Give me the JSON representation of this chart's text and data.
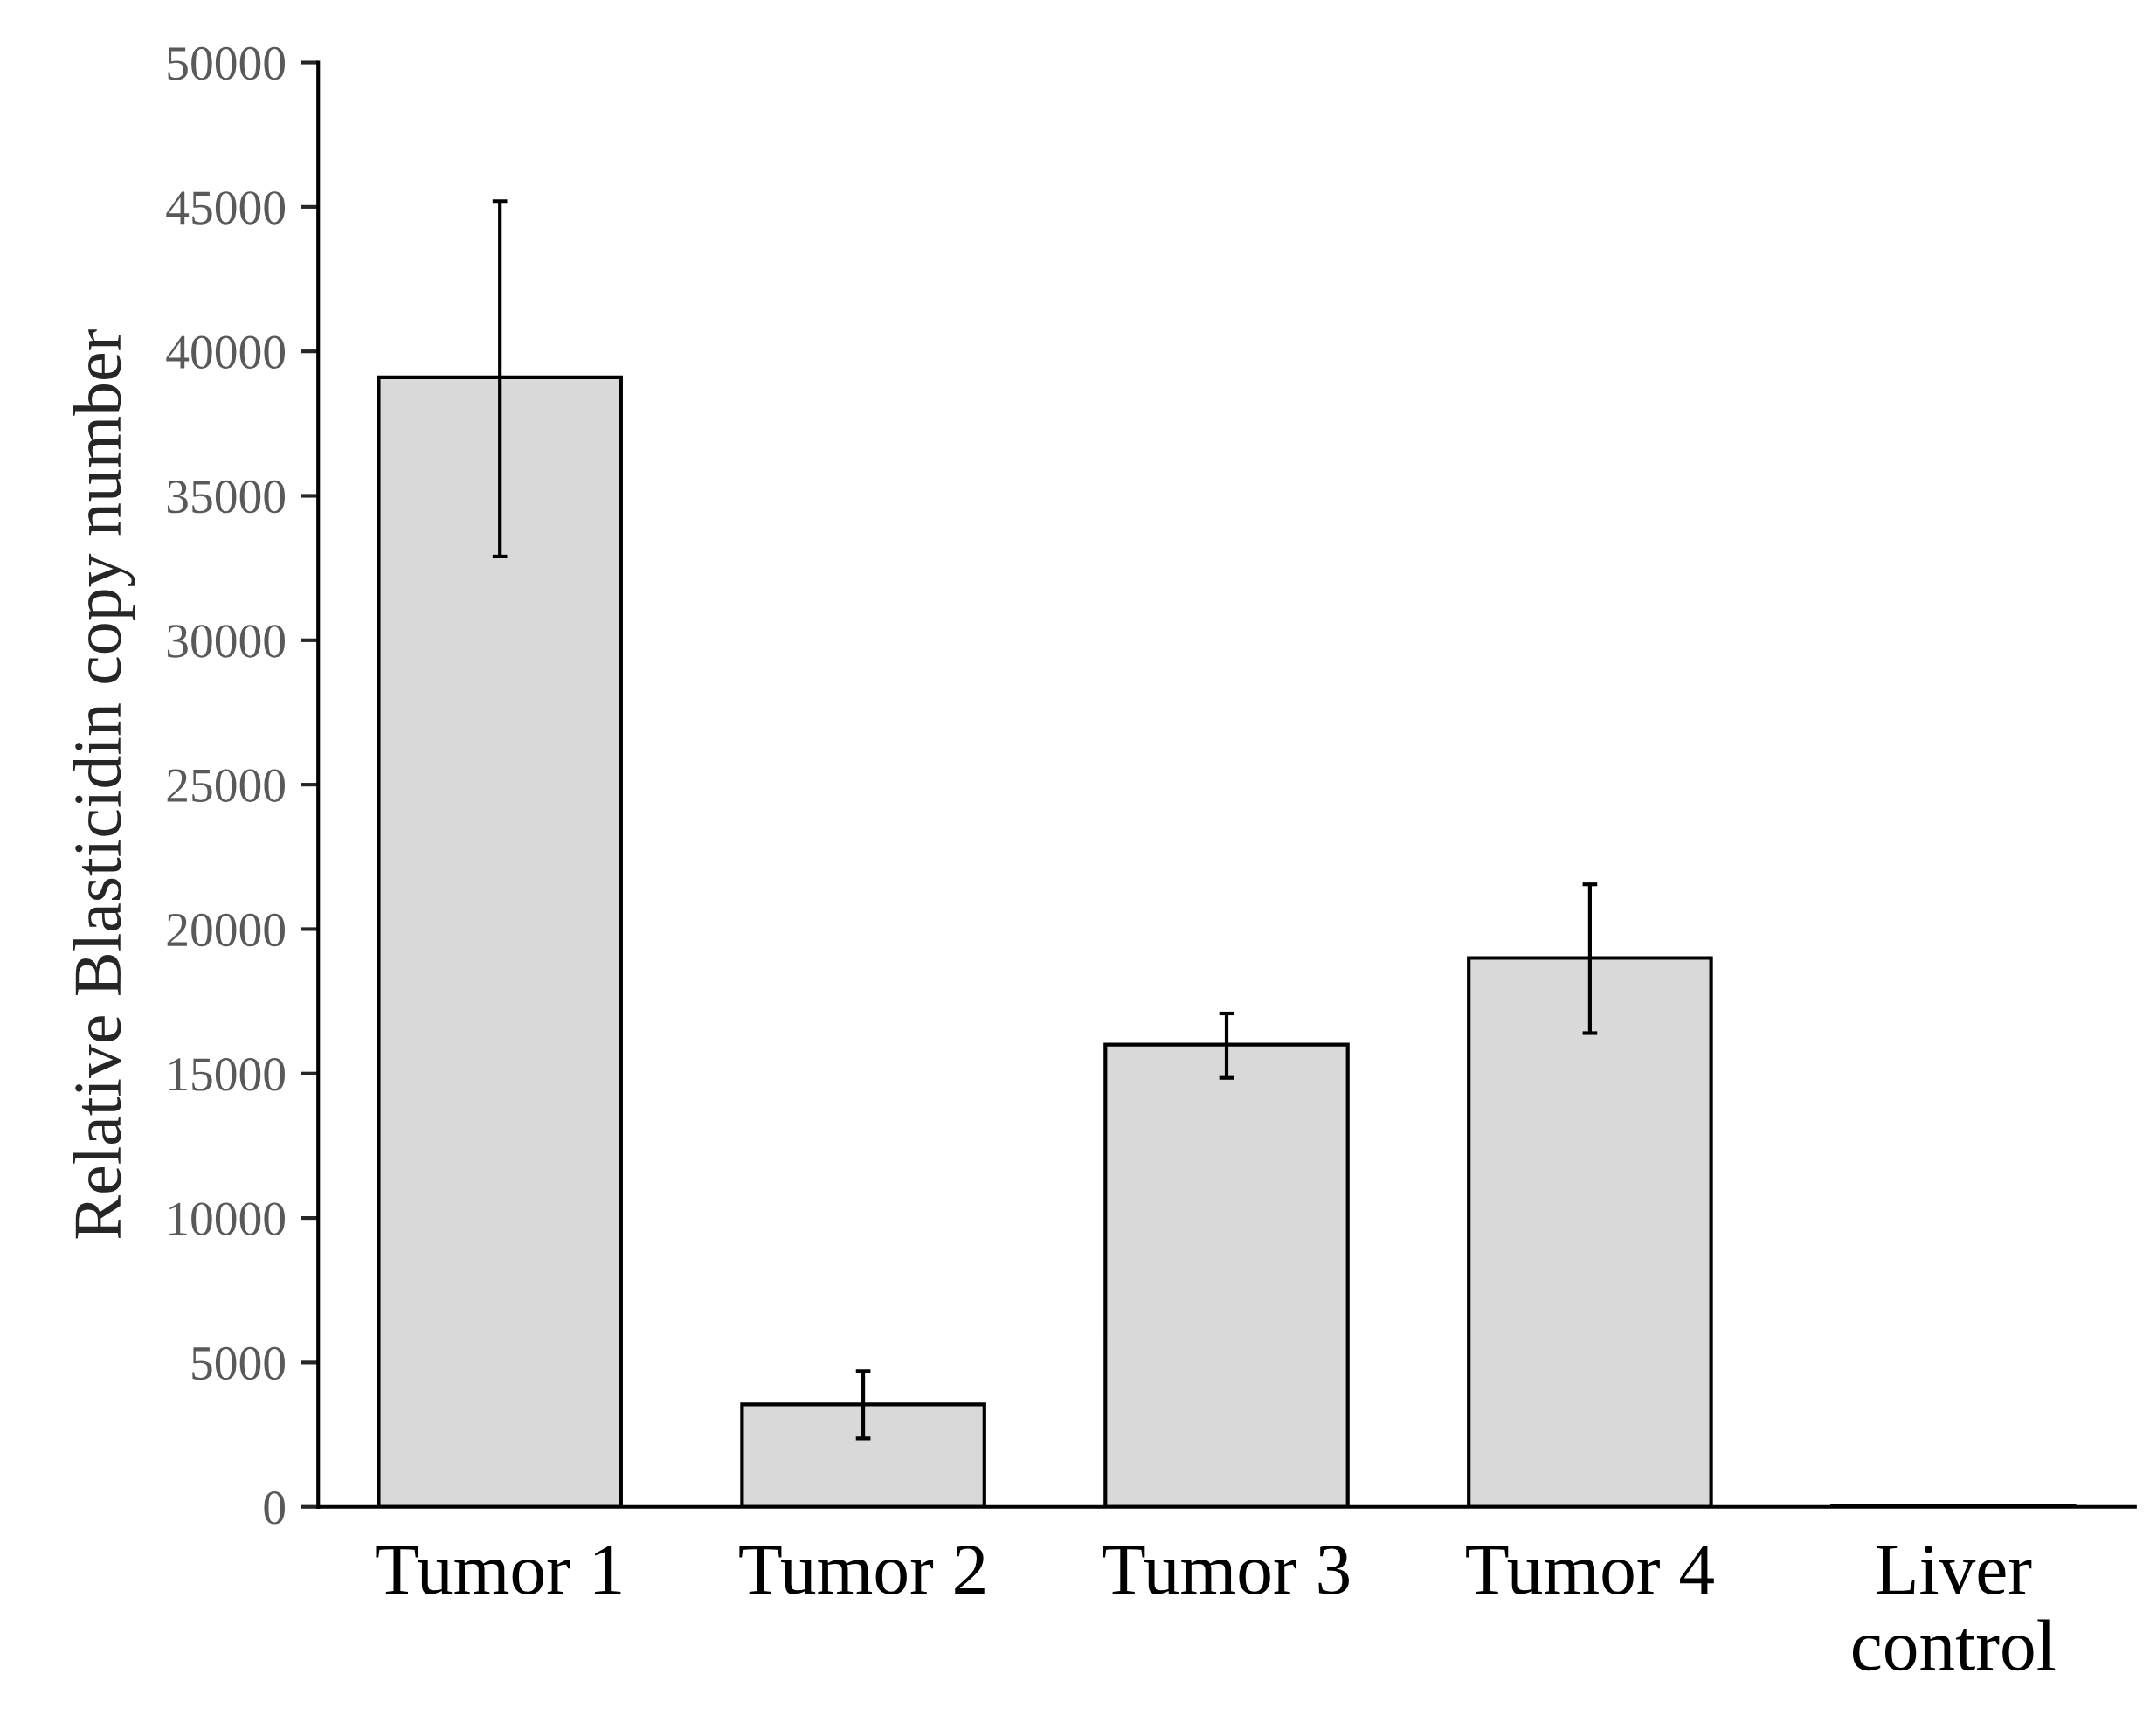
{
  "chart_data": {
    "type": "bar",
    "categories": [
      "Tumor 1",
      "Tumor 2",
      "Tumor 3",
      "Tumor 4",
      "Liver\ncontrol"
    ],
    "values": [
      39100,
      3550,
      16000,
      19000,
      50
    ],
    "errors": [
      [
        32900,
        45200
      ],
      [
        2370,
        4700
      ],
      [
        14850,
        17080
      ],
      [
        16400,
        21550
      ],
      null
    ],
    "color": "#d9d9d9",
    "ylabel": "Relative Blasticidin copy number",
    "ylim": [
      0,
      50000
    ],
    "yticks": [
      0,
      5000,
      10000,
      15000,
      20000,
      25000,
      30000,
      35000,
      40000,
      45000,
      50000
    ],
    "grid": false
  }
}
